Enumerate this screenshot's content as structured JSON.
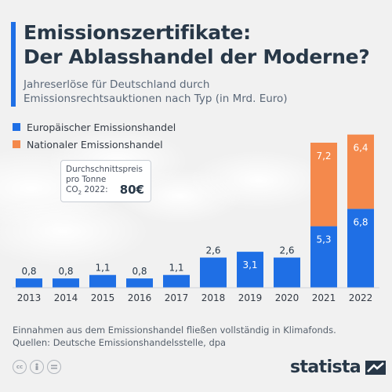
{
  "title": {
    "line1": "Emissionszertifikate:",
    "line2": "Der Ablasshandel der Moderne?"
  },
  "subtitle": {
    "line1": "Jahreserlöse für Deutschland durch",
    "line2": "Emissionsrechtsauktionen nach Typ (in Mrd. Euro)"
  },
  "legend": [
    {
      "label": "Europäischer Emissionshandel",
      "color": "#1f6fe5"
    },
    {
      "label": "Nationaler Emissionshandel",
      "color": "#f4894c"
    }
  ],
  "info_box": {
    "line1": "Durchschnittspreis",
    "line2": "pro Tonne",
    "line3_prefix": "CO",
    "line3_sub": "2",
    "line3_suffix": " 2022:",
    "value": "80€"
  },
  "footer": {
    "note": "Einnahmen aus dem Emissionshandel fließen vollständig in Klimafonds.",
    "sources": "Quellen: Deutsche Emissionshandelsstelle, dpa"
  },
  "brand": {
    "name": "statista",
    "icons": [
      "cc-icon",
      "person-icon",
      "equals-icon"
    ]
  },
  "colors": {
    "accent": "#1f6fe5",
    "european": "#1f6fe5",
    "national": "#f4894c",
    "title": "#283848",
    "background": "#f1f1f1"
  },
  "chart_data": {
    "type": "bar",
    "stacked": true,
    "categories": [
      "2013",
      "2014",
      "2015",
      "2016",
      "2017",
      "2018",
      "2019",
      "2020",
      "2021",
      "2022"
    ],
    "series": [
      {
        "name": "Europäischer Emissionshandel",
        "values": [
          0.8,
          0.8,
          1.1,
          0.8,
          1.1,
          2.6,
          3.1,
          2.6,
          5.3,
          6.8
        ]
      },
      {
        "name": "Nationaler Emissionshandel",
        "values": [
          0,
          0,
          0,
          0,
          0,
          0,
          0,
          0,
          7.2,
          6.4
        ]
      }
    ],
    "labels": {
      "european": [
        "0,8",
        "0,8",
        "1,1",
        "0,8",
        "1,1",
        "2,6",
        "3,1",
        "2,6",
        "5,3",
        "6,8"
      ],
      "national": [
        "",
        "",
        "",
        "",
        "",
        "",
        "",
        "",
        "7,2",
        "6,4"
      ]
    },
    "ylim": [
      0,
      13.2
    ],
    "grid": false,
    "legend_position": "top-left"
  }
}
